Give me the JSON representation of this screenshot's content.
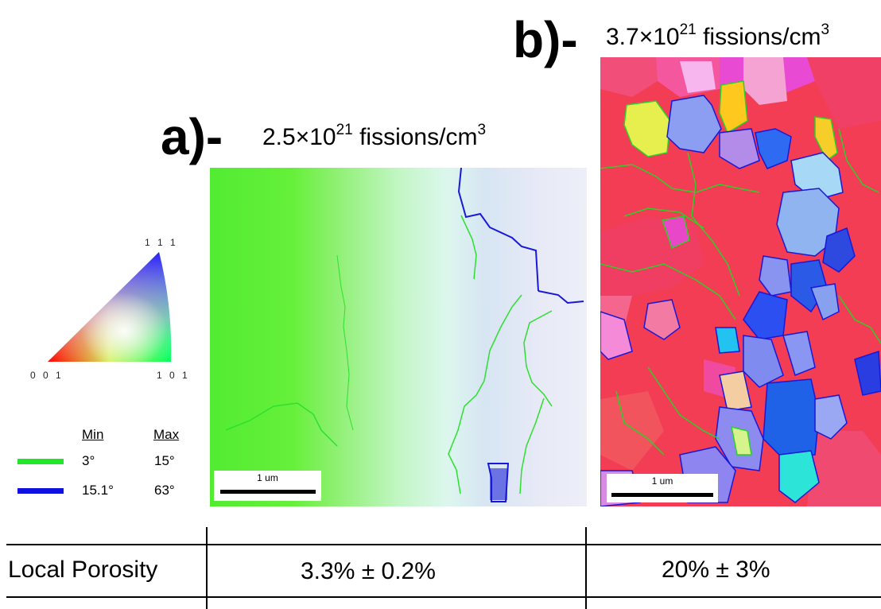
{
  "panel_a": {
    "letter": "a)-",
    "caption_prefix": "2.5×10",
    "caption_exp": "21",
    "caption_mid": " fissions/cm",
    "caption_unit_exp": "3",
    "scalebar": "1 um"
  },
  "panel_b": {
    "letter": "b)-",
    "caption_prefix": "3.7×10",
    "caption_exp": "21",
    "caption_mid": " fissions/cm",
    "caption_unit_exp": "3",
    "scalebar": "1 um"
  },
  "ipf_key": {
    "corner_top": "1 1 1",
    "corner_left": "0 0 1",
    "corner_right": "1 0 1"
  },
  "boundary_legend": {
    "min_header": "Min",
    "max_header": "Max",
    "rows": [
      {
        "min": "3°",
        "max": "15°",
        "color": "#22e62a"
      },
      {
        "min": "15.1°",
        "max": "63°",
        "color": "#1010e0"
      }
    ]
  },
  "table": {
    "row_label": "Local Porosity",
    "value_a": "3.3% ± 0.2%",
    "value_b": "20% ± 3%"
  }
}
